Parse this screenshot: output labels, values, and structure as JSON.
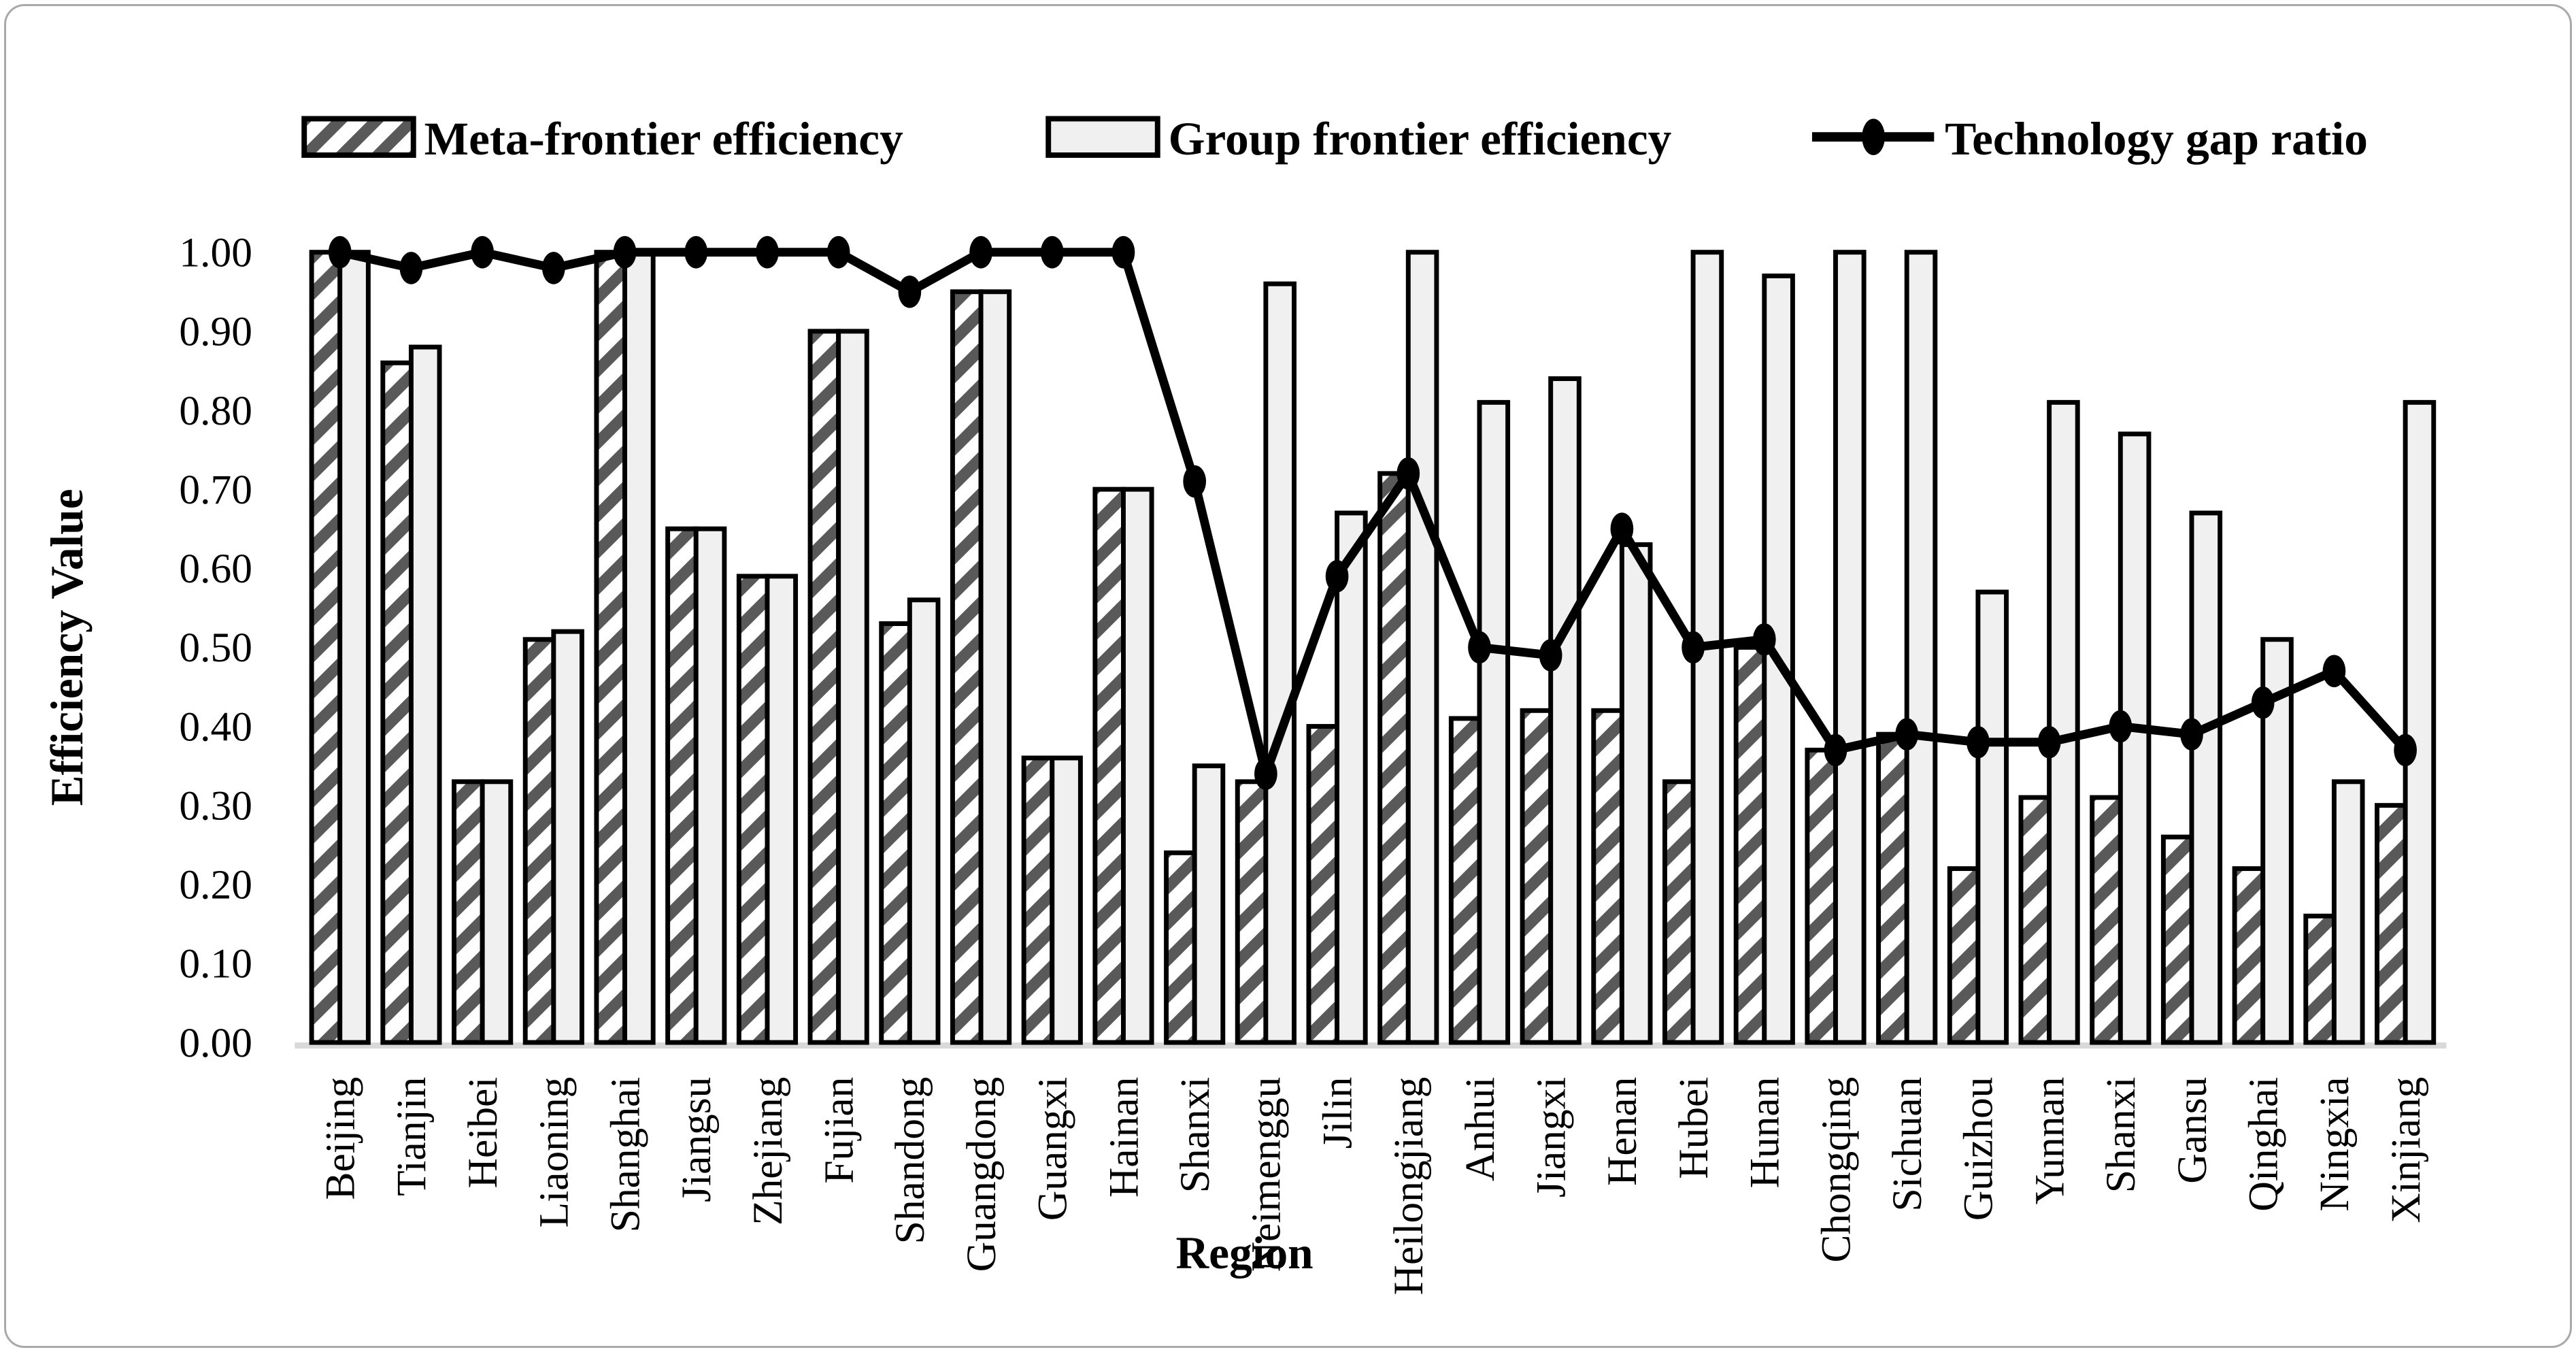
{
  "figure": {
    "background": "#ffffff",
    "border_color": "#a9a9a9"
  },
  "chart_data": {
    "type": "bar+line",
    "title": "",
    "xlabel": "Region",
    "ylabel": "Efficiency Value",
    "ylim": [
      0.0,
      1.0
    ],
    "ytick_step": 0.1,
    "ytick_labels": [
      "0.00",
      "0.10",
      "0.20",
      "0.30",
      "0.40",
      "0.50",
      "0.60",
      "0.70",
      "0.80",
      "0.90",
      "1.00"
    ],
    "grid": false,
    "legend_position": "top",
    "categories": [
      "Beijing",
      "Tianjin",
      "Heibei",
      "Liaoning",
      "Shanghai",
      "Jiangsu",
      "Zhejiang",
      "Fujian",
      "Shandong",
      "Guangdong",
      "Guangxi",
      "Hainan",
      "Shanxi",
      "Neimenggu",
      "Jilin",
      "Heilongjiang",
      "Anhui",
      "Jiangxi",
      "Henan",
      "Hubei",
      "Hunan",
      "Chongqing",
      "Sichuan",
      "Guizhou",
      "Yunnan",
      "Shanxi",
      "Gansu",
      "Qinghai",
      "Ningxia",
      "Xinjiang"
    ],
    "series": [
      {
        "name": "Meta-frontier efficiency",
        "type": "bar",
        "style": "hatched",
        "hatch_color": "#595959",
        "fill": "#ffffff",
        "stroke": "#000000",
        "values": [
          1.0,
          0.86,
          0.33,
          0.51,
          1.0,
          0.65,
          0.59,
          0.9,
          0.53,
          0.95,
          0.36,
          0.7,
          0.24,
          0.33,
          0.4,
          0.72,
          0.41,
          0.42,
          0.42,
          0.33,
          0.5,
          0.37,
          0.39,
          0.22,
          0.31,
          0.31,
          0.26,
          0.22,
          0.16,
          0.3
        ]
      },
      {
        "name": "Group frontier efficiency",
        "type": "bar",
        "style": "solid",
        "fill": "#f0f0f0",
        "stroke": "#000000",
        "values": [
          1.0,
          0.88,
          0.33,
          0.52,
          1.0,
          0.65,
          0.59,
          0.9,
          0.56,
          0.95,
          0.36,
          0.7,
          0.35,
          0.96,
          0.67,
          1.0,
          0.81,
          0.84,
          0.63,
          1.0,
          0.97,
          1.0,
          1.0,
          0.57,
          0.81,
          0.77,
          0.67,
          0.51,
          0.33,
          0.81
        ]
      },
      {
        "name": "Technology gap ratio",
        "type": "line",
        "marker": "ellipse",
        "color": "#000000",
        "values": [
          1.0,
          0.98,
          1.0,
          0.98,
          1.0,
          1.0,
          1.0,
          1.0,
          0.95,
          1.0,
          1.0,
          1.0,
          0.71,
          0.34,
          0.59,
          0.72,
          0.5,
          0.49,
          0.65,
          0.5,
          0.51,
          0.37,
          0.39,
          0.38,
          0.38,
          0.4,
          0.39,
          0.43,
          0.47,
          0.37
        ]
      }
    ],
    "axis_line_color": "#d9d9d9"
  }
}
